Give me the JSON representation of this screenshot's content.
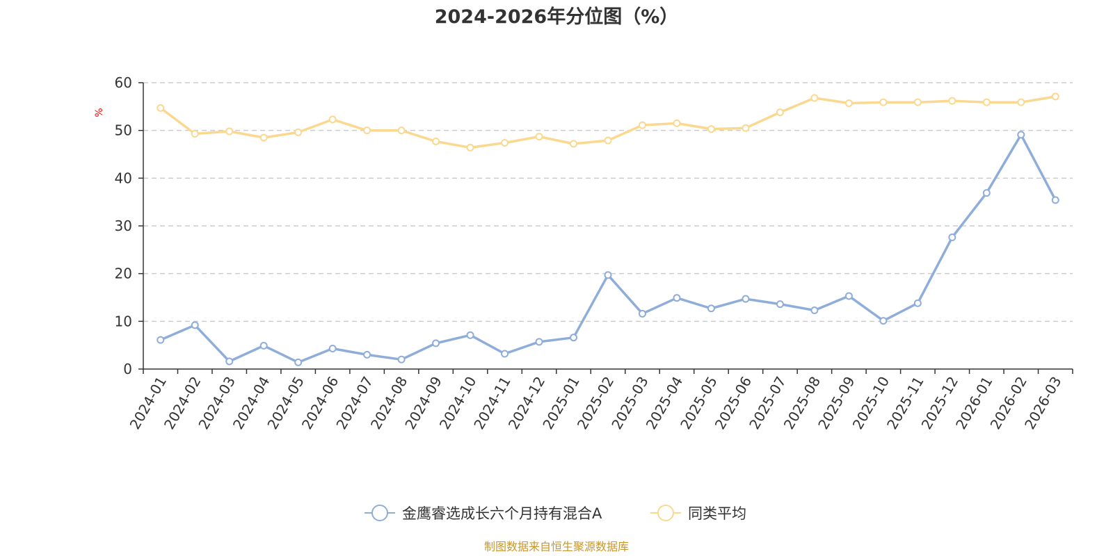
{
  "chart_data": {
    "type": "line",
    "title": "2024-2026年分位图（%）",
    "xlabel": "",
    "ylabel": "%",
    "ylim": [
      0,
      60
    ],
    "yticks": [
      0,
      10,
      20,
      30,
      40,
      50,
      60
    ],
    "grid": true,
    "legend_position": "bottom-center",
    "categories": [
      "2024-01",
      "2024-02",
      "2024-03",
      "2024-04",
      "2024-05",
      "2024-06",
      "2024-07",
      "2024-08",
      "2024-09",
      "2024-10",
      "2024-11",
      "2024-12",
      "2025-01",
      "2025-02",
      "2025-03",
      "2025-04",
      "2025-05",
      "2025-06",
      "2025-07",
      "2025-08",
      "2025-09",
      "2025-10",
      "2025-11",
      "2025-12",
      "2026-01",
      "2026-02",
      "2026-03"
    ],
    "series": [
      {
        "name": "金鹰睿选成长六个月持有混合A",
        "color": "#8eadd9",
        "values": [
          6.1,
          9.2,
          1.6,
          4.9,
          1.4,
          4.3,
          3.0,
          2.0,
          5.4,
          7.1,
          3.2,
          5.7,
          6.6,
          19.7,
          11.6,
          14.9,
          12.7,
          14.7,
          13.6,
          12.3,
          15.3,
          10.1,
          13.8,
          27.6,
          36.9,
          49.1,
          35.4
        ]
      },
      {
        "name": "同类平均",
        "color": "#fad890",
        "values": [
          54.7,
          49.3,
          49.8,
          48.5,
          49.6,
          52.3,
          50.0,
          50.0,
          47.7,
          46.4,
          47.4,
          48.7,
          47.2,
          47.9,
          51.1,
          51.5,
          50.3,
          50.5,
          53.8,
          56.8,
          55.7,
          55.9,
          55.9,
          56.2,
          55.9,
          55.9,
          57.1
        ]
      }
    ],
    "source": "制图数据来自恒生聚源数据库"
  }
}
